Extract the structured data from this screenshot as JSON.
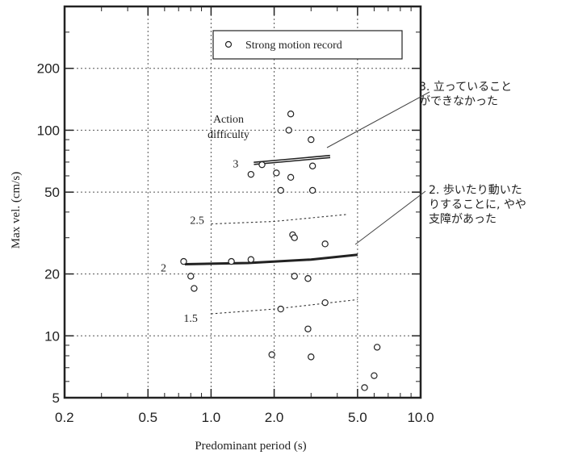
{
  "chart_data": {
    "type": "scatter",
    "title": "",
    "xlabel": "Predominant period (s)",
    "ylabel": "Max vel. (cm/s)",
    "x_scale": "log",
    "y_scale": "log",
    "xlim": [
      0.2,
      10.0
    ],
    "ylim": [
      5,
      400
    ],
    "x_ticks": [
      {
        "value": 0.2,
        "label": "0.2"
      },
      {
        "value": 0.5,
        "label": "0.5"
      },
      {
        "value": 1.0,
        "label": "1.0"
      },
      {
        "value": 2.0,
        "label": "2.0"
      },
      {
        "value": 5.0,
        "label": "5.0"
      },
      {
        "value": 10.0,
        "label": "10.0"
      }
    ],
    "y_ticks": [
      {
        "value": 5,
        "label": "5"
      },
      {
        "value": 10,
        "label": "10"
      },
      {
        "value": 20,
        "label": "20"
      },
      {
        "value": 50,
        "label": "50"
      },
      {
        "value": 100,
        "label": "100"
      },
      {
        "value": 200,
        "label": "200"
      }
    ],
    "x_gridlines": [
      0.5,
      1.0,
      2.0,
      5.0
    ],
    "y_gridlines": [
      10,
      20,
      50,
      100,
      200
    ],
    "grid": true,
    "legend": {
      "position": "top-right",
      "label": "Strong motion record",
      "marker": "open-circle"
    },
    "series": [
      {
        "name": "Strong motion record",
        "points": [
          {
            "x": 2.4,
            "y": 120
          },
          {
            "x": 2.35,
            "y": 100
          },
          {
            "x": 3.0,
            "y": 90
          },
          {
            "x": 1.75,
            "y": 68
          },
          {
            "x": 1.55,
            "y": 61
          },
          {
            "x": 2.05,
            "y": 62
          },
          {
            "x": 2.4,
            "y": 59
          },
          {
            "x": 3.05,
            "y": 67
          },
          {
            "x": 2.15,
            "y": 51
          },
          {
            "x": 3.05,
            "y": 51
          },
          {
            "x": 2.45,
            "y": 31
          },
          {
            "x": 2.5,
            "y": 30
          },
          {
            "x": 3.5,
            "y": 28
          },
          {
            "x": 0.74,
            "y": 23
          },
          {
            "x": 1.25,
            "y": 23
          },
          {
            "x": 1.55,
            "y": 23.5
          },
          {
            "x": 0.8,
            "y": 19.5
          },
          {
            "x": 2.5,
            "y": 19.5
          },
          {
            "x": 2.9,
            "y": 19
          },
          {
            "x": 0.83,
            "y": 17
          },
          {
            "x": 3.5,
            "y": 14.5
          },
          {
            "x": 2.15,
            "y": 13.5
          },
          {
            "x": 2.9,
            "y": 10.8
          },
          {
            "x": 1.95,
            "y": 8.1
          },
          {
            "x": 3.0,
            "y": 7.9
          },
          {
            "x": 6.2,
            "y": 8.8
          },
          {
            "x": 6.0,
            "y": 6.4
          },
          {
            "x": 5.4,
            "y": 5.6
          }
        ]
      }
    ],
    "curves": [
      {
        "label": "3",
        "style": "solid-double",
        "points": [
          [
            1.6,
            69
          ],
          [
            2.2,
            71
          ],
          [
            3.7,
            74.5
          ]
        ]
      },
      {
        "label": "2.5",
        "style": "dashed",
        "points": [
          [
            1.0,
            35
          ],
          [
            2.0,
            36
          ],
          [
            4.5,
            39
          ]
        ]
      },
      {
        "label": "2",
        "style": "solid-thick",
        "points": [
          [
            0.75,
            22.3
          ],
          [
            1.5,
            22.6
          ],
          [
            3.0,
            23.5
          ],
          [
            5.0,
            24.8
          ]
        ]
      },
      {
        "label": "1.5",
        "style": "dashed",
        "points": [
          [
            1.0,
            12.8
          ],
          [
            2.0,
            13.5
          ],
          [
            5.0,
            15
          ]
        ]
      }
    ],
    "annotations": {
      "action_difficulty": [
        "Action",
        "difficulty"
      ],
      "note_3": [
        "3. 立っていること",
        "ができなかった"
      ],
      "note_2": [
        "2. 歩いたり動いた",
        "りすることに, やや",
        "支障があった"
      ]
    }
  }
}
